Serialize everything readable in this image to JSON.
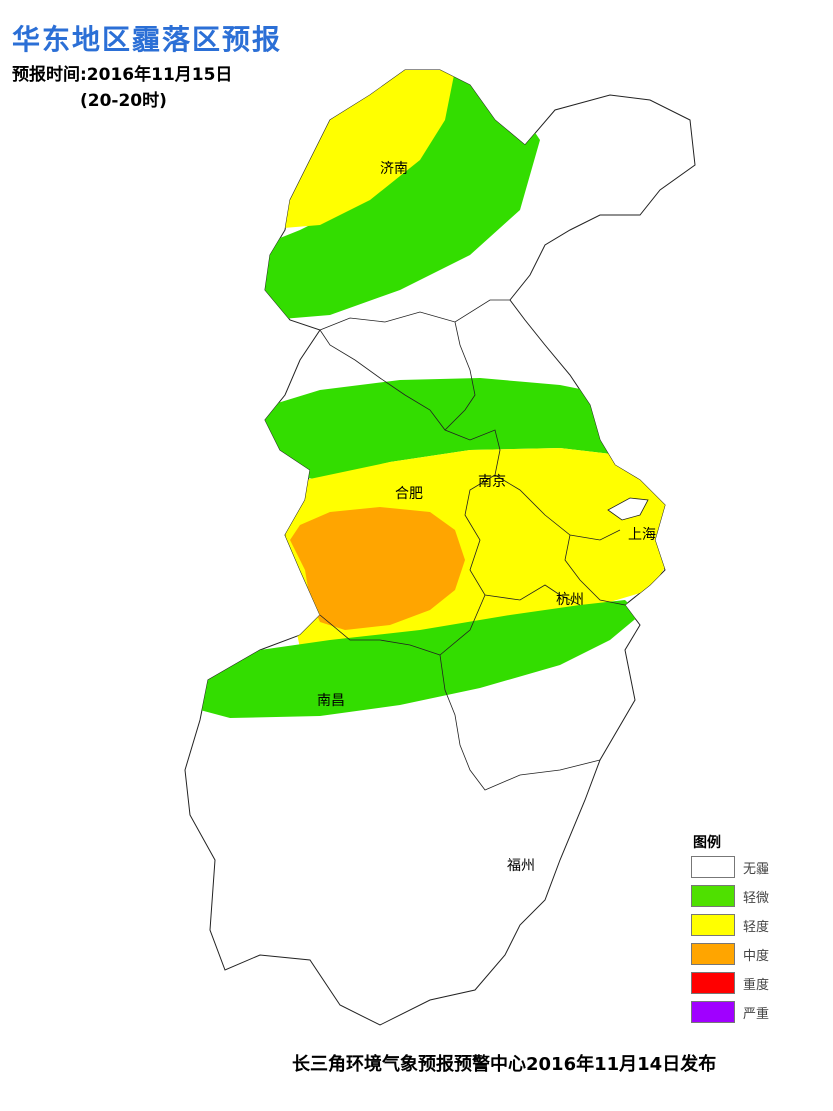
{
  "header": {
    "title": "华东地区霾落区预报",
    "forecast_time": "预报时间:2016年11月15日",
    "forecast_period": "(20-20时)"
  },
  "cities": {
    "jinan": "济南",
    "hefei": "合肥",
    "nanjing": "南京",
    "shanghai": "上海",
    "hangzhou": "杭州",
    "nanchang": "南昌",
    "fuzhou": "福州"
  },
  "legend": {
    "title": "图例",
    "items": [
      {
        "label": "无霾",
        "color": "#ffffff"
      },
      {
        "label": "轻微",
        "color": "#4fe000"
      },
      {
        "label": "轻度",
        "color": "#ffff00"
      },
      {
        "label": "中度",
        "color": "#ffa500"
      },
      {
        "label": "重度",
        "color": "#ff0000"
      },
      {
        "label": "严重",
        "color": "#a000ff"
      }
    ]
  },
  "zones": {
    "green": "#33dd00",
    "yellow": "#ffff00",
    "orange": "#ffa500"
  },
  "footer": "长三角环境气象预报预警中心2016年11月14日发布"
}
